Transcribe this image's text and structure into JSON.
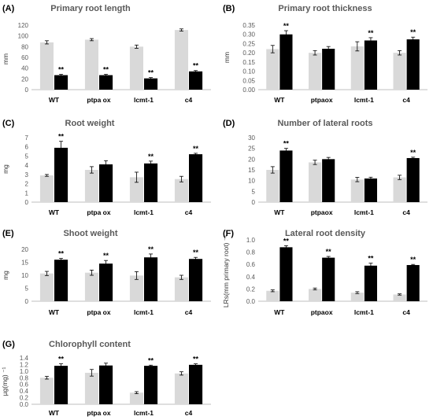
{
  "colors": {
    "control": "#d9d9d9",
    "treated": "#000000",
    "axis": "#bfbfbf",
    "text": "#595959"
  },
  "chart_data": [
    {
      "type": "bar",
      "panel": "(A)",
      "title": "Primary root length",
      "ylabel": "mm",
      "categories": [
        "WT",
        "ptpa ox",
        "lcmt-1",
        "c4"
      ],
      "ylim": [
        0,
        120
      ],
      "yticks": [
        0,
        20,
        40,
        60,
        80,
        100,
        120
      ],
      "tick_decimals": 0,
      "series": [
        {
          "values": [
            88,
            93,
            80,
            111
          ],
          "errors": [
            3,
            2,
            3,
            2
          ],
          "color": "#d9d9d9"
        },
        {
          "values": [
            27,
            27,
            21,
            34
          ],
          "errors": [
            1.5,
            1.5,
            1.5,
            1.5
          ],
          "color": "#000000",
          "significance": [
            "**",
            "**",
            "**",
            "**"
          ]
        }
      ]
    },
    {
      "type": "bar",
      "panel": "(B)",
      "title": "Primary root thickness",
      "ylabel": "mm",
      "categories": [
        "WT",
        "ptpaox",
        "lcmt-1",
        "c4"
      ],
      "ylim": [
        0,
        0.35
      ],
      "yticks": [
        0,
        0.05,
        0.1,
        0.15,
        0.2,
        0.25,
        0.3,
        0.35
      ],
      "tick_decimals": 2,
      "series": [
        {
          "values": [
            0.22,
            0.2,
            0.235,
            0.2
          ],
          "errors": [
            0.02,
            0.012,
            0.025,
            0.012
          ],
          "color": "#d9d9d9"
        },
        {
          "values": [
            0.3,
            0.222,
            0.267,
            0.273
          ],
          "errors": [
            0.02,
            0.012,
            0.015,
            0.012
          ],
          "color": "#000000",
          "significance": [
            "**",
            "",
            "**",
            "**"
          ]
        }
      ]
    },
    {
      "type": "bar",
      "panel": "(C)",
      "title": "Root weight",
      "ylabel": "mg",
      "categories": [
        "WT",
        "ptpa ox",
        "lcmt-1",
        "c4"
      ],
      "ylim": [
        0,
        7
      ],
      "yticks": [
        0,
        1,
        2,
        3,
        4,
        5,
        6,
        7
      ],
      "tick_decimals": 0,
      "series": [
        {
          "values": [
            2.9,
            3.5,
            2.7,
            2.5
          ],
          "errors": [
            0.1,
            0.35,
            0.55,
            0.3
          ],
          "color": "#d9d9d9"
        },
        {
          "values": [
            5.9,
            4.1,
            4.2,
            5.2
          ],
          "errors": [
            0.7,
            0.4,
            0.25,
            0.1
          ],
          "color": "#000000",
          "significance": [
            "**",
            "",
            "**",
            "**"
          ]
        }
      ]
    },
    {
      "type": "bar",
      "panel": "(D)",
      "title": "Number of lateral roots",
      "ylabel": "",
      "categories": [
        "WT",
        "ptpaox",
        "lcmt-1",
        "c4"
      ],
      "ylim": [
        0,
        30
      ],
      "yticks": [
        0,
        5,
        10,
        15,
        20,
        25,
        30
      ],
      "tick_decimals": 0,
      "series": [
        {
          "values": [
            15,
            18.5,
            10.5,
            11.5
          ],
          "errors": [
            1.5,
            1,
            1,
            1
          ],
          "color": "#d9d9d9"
        },
        {
          "values": [
            24,
            20,
            11,
            20.5
          ],
          "errors": [
            1,
            0.8,
            0.6,
            0.4
          ],
          "color": "#000000",
          "significance": [
            "**",
            "",
            "",
            "**"
          ]
        }
      ]
    },
    {
      "type": "bar",
      "panel": "(E)",
      "title": "Shoot weight",
      "ylabel": "mg",
      "categories": [
        "WT",
        "ptpa ox",
        "lcmt-1",
        "c4"
      ],
      "ylim": [
        0,
        20
      ],
      "yticks": [
        0,
        5,
        10,
        15,
        20
      ],
      "tick_decimals": 0,
      "series": [
        {
          "values": [
            10.7,
            11,
            9.9,
            9.2
          ],
          "errors": [
            0.8,
            1,
            1.5,
            0.8
          ],
          "color": "#d9d9d9"
        },
        {
          "values": [
            16,
            14.5,
            16.9,
            16.3
          ],
          "errors": [
            0.5,
            1.2,
            1.3,
            0.6
          ],
          "color": "#000000",
          "significance": [
            "**",
            "**",
            "**",
            "**"
          ]
        }
      ]
    },
    {
      "type": "bar",
      "panel": "(F)",
      "title": "Lateral root density",
      "ylabel": "LRs(mm primary root) ⁻¹",
      "categories": [
        "WT",
        "ptpaox",
        "lcmt-1",
        "c4"
      ],
      "ylim": [
        0,
        1.0
      ],
      "yticks": [
        0,
        0.2,
        0.4,
        0.6,
        0.8,
        1.0
      ],
      "tick_decimals": 1,
      "series": [
        {
          "values": [
            0.17,
            0.2,
            0.14,
            0.11
          ],
          "errors": [
            0.015,
            0.015,
            0.015,
            0.01
          ],
          "color": "#d9d9d9"
        },
        {
          "values": [
            0.88,
            0.71,
            0.58,
            0.59
          ],
          "errors": [
            0.025,
            0.02,
            0.04,
            0.01
          ],
          "color": "#000000",
          "significance": [
            "**",
            "**",
            "**",
            "**"
          ]
        }
      ]
    },
    {
      "type": "bar",
      "panel": "(G)",
      "title": "Chlorophyll content",
      "ylabel": "µg(mg) ⁻¹",
      "categories": [
        "WT",
        "ptpa ox",
        "lcmt-1",
        "c4"
      ],
      "ylim": [
        0,
        1.4
      ],
      "yticks": [
        0,
        0.2,
        0.4,
        0.6,
        0.8,
        1,
        1.2,
        1.4
      ],
      "tick_decimals": 1,
      "series": [
        {
          "values": [
            0.8,
            0.95,
            0.35,
            0.93
          ],
          "errors": [
            0.04,
            0.1,
            0.03,
            0.05
          ],
          "color": "#d9d9d9"
        },
        {
          "values": [
            1.16,
            1.17,
            1.16,
            1.19
          ],
          "errors": [
            0.06,
            0.07,
            0.02,
            0.03
          ],
          "color": "#000000",
          "significance": [
            "**",
            "",
            "**",
            "**"
          ]
        }
      ]
    }
  ]
}
